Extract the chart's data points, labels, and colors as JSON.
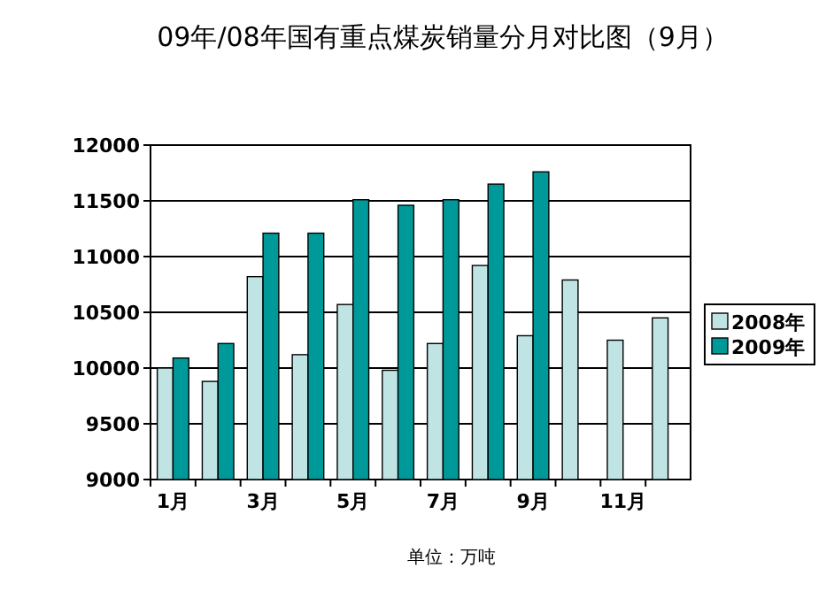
{
  "chart_data": {
    "type": "bar",
    "title": "09年/08年国有重点煤炭销量分月对比图（9月）",
    "categories": [
      "1月",
      null,
      "3月",
      null,
      "5月",
      null,
      "7月",
      null,
      "9月",
      null,
      "11月",
      null
    ],
    "series": [
      {
        "name": "2008年",
        "color": "#c0e4e4",
        "values": [
          10000,
          9880,
          10820,
          10120,
          10570,
          9980,
          10220,
          10920,
          10290,
          10790,
          10250,
          10450
        ]
      },
      {
        "name": "2009年",
        "color": "#009999",
        "values": [
          10090,
          10220,
          11210,
          11210,
          11510,
          11460,
          11510,
          11650,
          11760,
          null,
          null,
          null
        ]
      }
    ],
    "ylim": [
      9000,
      12000
    ],
    "yticks": [
      9000,
      9500,
      10000,
      10500,
      11000,
      11500,
      12000
    ],
    "grid": "y",
    "legend": "right",
    "annotations": [
      "单位：万吨"
    ]
  }
}
